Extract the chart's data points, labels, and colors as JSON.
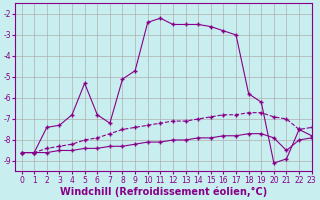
{
  "background_color": "#c8eef0",
  "grid_color": "#b0b0b0",
  "line_color": "#880088",
  "xlabel": "Windchill (Refroidissement éolien,°C)",
  "xlim": [
    -0.5,
    23
  ],
  "ylim": [
    -9.5,
    -1.5
  ],
  "yticks": [
    -9,
    -8,
    -7,
    -6,
    -5,
    -4,
    -3,
    -2
  ],
  "xticks": [
    0,
    1,
    2,
    3,
    4,
    5,
    6,
    7,
    8,
    9,
    10,
    11,
    12,
    13,
    14,
    15,
    16,
    17,
    18,
    19,
    20,
    21,
    22,
    23
  ],
  "line1_x": [
    0,
    1,
    2,
    3,
    4,
    5,
    6,
    7,
    8,
    9,
    10,
    11,
    12,
    13,
    14,
    15,
    16,
    17,
    18,
    19,
    20,
    21,
    22,
    23
  ],
  "line1_y": [
    -8.6,
    -8.6,
    -7.4,
    -7.3,
    -6.8,
    -5.3,
    -6.8,
    -7.2,
    -5.1,
    -4.7,
    -2.4,
    -2.2,
    -2.5,
    -2.5,
    -2.5,
    -2.6,
    -2.8,
    -3.0,
    -5.8,
    -6.2,
    -9.1,
    -8.9,
    -7.5,
    -7.8
  ],
  "line2_x": [
    0,
    1,
    2,
    3,
    4,
    5,
    6,
    7,
    8,
    9,
    10,
    11,
    12,
    13,
    14,
    15,
    16,
    17,
    18,
    19,
    20,
    21,
    22,
    23
  ],
  "line2_y": [
    -8.6,
    -8.6,
    -8.4,
    -8.3,
    -8.2,
    -8.0,
    -7.9,
    -7.7,
    -7.5,
    -7.4,
    -7.3,
    -7.2,
    -7.1,
    -7.1,
    -7.0,
    -6.9,
    -6.8,
    -6.8,
    -6.7,
    -6.7,
    -6.9,
    -7.0,
    -7.5,
    -7.4
  ],
  "line3_x": [
    0,
    1,
    2,
    3,
    4,
    5,
    6,
    7,
    8,
    9,
    10,
    11,
    12,
    13,
    14,
    15,
    16,
    17,
    18,
    19,
    20,
    21,
    22,
    23
  ],
  "line3_y": [
    -8.6,
    -8.6,
    -8.6,
    -8.5,
    -8.5,
    -8.4,
    -8.4,
    -8.3,
    -8.3,
    -8.2,
    -8.1,
    -8.1,
    -8.0,
    -8.0,
    -7.9,
    -7.9,
    -7.8,
    -7.8,
    -7.7,
    -7.7,
    -7.9,
    -8.5,
    -8.0,
    -7.9
  ],
  "figsize": [
    3.2,
    2.0
  ],
  "dpi": 100,
  "xlabel_fontsize": 7,
  "tick_fontsize": 5.5,
  "marker": "+"
}
